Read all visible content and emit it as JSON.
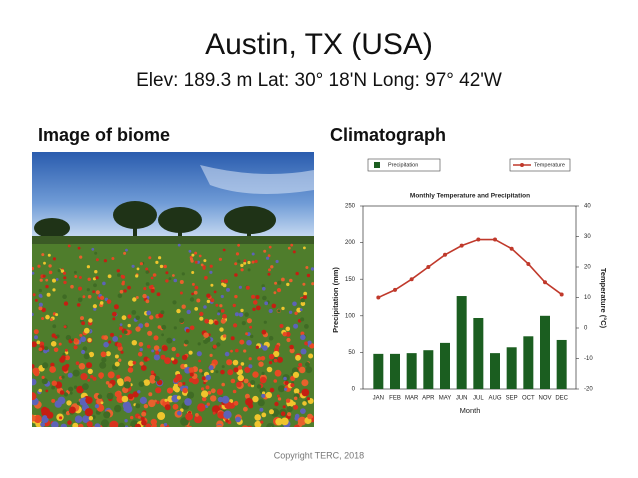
{
  "slide": {
    "title": "Austin, TX  (USA)",
    "subtitle": "Elev: 189.3 m   Lat: 30° 18'N    Long: 97° 42'W",
    "left_heading": "Image of biome",
    "right_heading": "Climatograph",
    "footer": "Copyright TERC, 2018"
  },
  "chart_data": {
    "type": "combo",
    "title": "Monthly Temperature and Precipitation",
    "x_label": "Month",
    "y_label": "Precipitation (mm)",
    "y2_label": "Temperature (°C)",
    "categories": [
      "JAN",
      "FEB",
      "MAR",
      "APR",
      "MAY",
      "JUN",
      "JUL",
      "AUG",
      "SEP",
      "OCT",
      "NOV",
      "DEC"
    ],
    "series": [
      {
        "name": "Precipitation",
        "type": "bar",
        "axis": "y",
        "color": "#1b5e20",
        "values": [
          48,
          48,
          49,
          53,
          63,
          127,
          97,
          49,
          57,
          72,
          100,
          67
        ]
      },
      {
        "name": "Temperature",
        "type": "line",
        "axis": "y2",
        "color": "#c0392b",
        "values": [
          10,
          12.5,
          16,
          20,
          24,
          27,
          29,
          29,
          26,
          21,
          15,
          11
        ]
      }
    ],
    "ylim": [
      0,
      250
    ],
    "yticks": [
      0,
      50,
      100,
      150,
      200,
      250
    ],
    "y2lim": [
      -20,
      40
    ],
    "y2ticks": [
      -20,
      -10,
      0,
      10,
      20,
      30,
      40
    ]
  }
}
